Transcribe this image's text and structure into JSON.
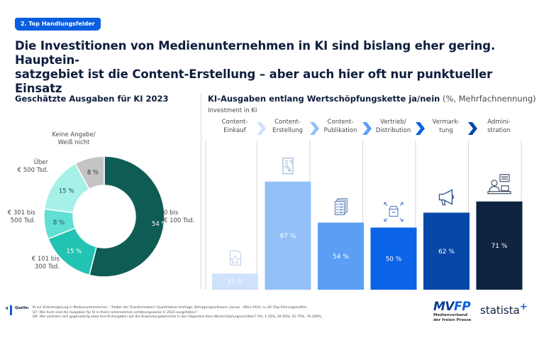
{
  "badge": "2. Top Handlungsfelder",
  "title_line1": "Die Investitionen von Medienunternehmen in KI sind bislang eher gering. Hauptein-",
  "title_line2": "satzgebiet ist die Content-Erstellung – aber auch hier oft nur punktueller Einsatz",
  "chart_data": [
    {
      "type": "pie",
      "variant": "donut",
      "title": "Geschätzte Ausgaben für KI 2023",
      "slices": [
        {
          "label": "0 bis € 100 Tsd.",
          "label_lines": [
            "0 bis",
            "€ 100 Tsd."
          ],
          "value": 54,
          "value_label": "54 %",
          "color": "#0f5c55",
          "text_color": "#ffffff"
        },
        {
          "label": "€ 101 bis 300 Tsd.",
          "label_lines": [
            "€ 101 bis",
            "300 Tsd."
          ],
          "value": 15,
          "value_label": "15 %",
          "color": "#22c3b3",
          "text_color": "#ffffff"
        },
        {
          "label": "€ 301 bis 500 Tsd.",
          "label_lines": [
            "€ 301 bis",
            "500 Tsd."
          ],
          "value": 8,
          "value_label": "8 %",
          "color": "#5fe0d2",
          "text_color": "#1e4a5a"
        },
        {
          "label": "Über € 500 Tsd.",
          "label_lines": [
            "Über",
            "€ 500 Tsd."
          ],
          "value": 15,
          "value_label": "15 %",
          "color": "#a6f0e8",
          "text_color": "#1e4a5a"
        },
        {
          "label": "Keine Angabe/ Weiß nicht",
          "label_lines": [
            "Keine Angabe/",
            "Weiß nicht"
          ],
          "value": 8,
          "value_label": "8 %",
          "color": "#c4c4c4",
          "text_color": "#3a3a3a"
        }
      ]
    },
    {
      "type": "bar",
      "title": "KI-Ausgaben entlang Wertschöpfungskette ja/nein",
      "title_suffix": "(%, Mehrfachnennung)",
      "subtitle": "Investment in KI",
      "categories": [
        "Content-Einkauf",
        "Content-Erstellung",
        "Content-Publikation",
        "Vertrieb/Distribution",
        "Vermarktung",
        "Administration"
      ],
      "category_lines": [
        [
          "Content-",
          "Einkauf"
        ],
        [
          "Content-",
          "Erstellung"
        ],
        [
          "Content-",
          "Publikation"
        ],
        [
          "Vertrieb/",
          "Distribution"
        ],
        [
          "Vermark-",
          "tung"
        ],
        [
          "Admini-",
          "stration"
        ]
      ],
      "values": [
        13,
        87,
        54,
        50,
        62,
        71
      ],
      "value_labels": [
        "13 %",
        "87 %",
        "54 %",
        "50 %",
        "62 %",
        "71 %"
      ],
      "colors": [
        "#cfe2fc",
        "#94c0f8",
        "#5b9ef5",
        "#0b63e6",
        "#0647a8",
        "#0f2440"
      ],
      "chevron_colors": [
        "#cfe2fc",
        "#94c0f8",
        "#5b9ef5",
        "#0b63e6",
        "#0647a8"
      ],
      "icons": [
        "document-star-icon",
        "content-creation-icon",
        "documents-list-icon",
        "distribution-box-icon",
        "megaphone-icon",
        "ai-assistant-icon"
      ],
      "ylim": [
        0,
        100
      ]
    }
  ],
  "footer": {
    "page_number": "9",
    "source_label": "Quelle:",
    "lines": [
      "KI zur Erlössteigerung in Medienunternehmen – Treiber der Transformation? Quantitative Umfrage; Befragungszeitraum: Januar - März 2024; n=26 (Top-Führungskräfte)",
      "Q7: Wie hoch sind die Ausgaben für KI in Ihrem Unternehmen schätzungsweise in 2023 ausgefallen?",
      "Q9: Wie verteilen sich gegenwärtig etwa Ihre KI-Ausgaben auf die Anwendungsbereiche in den folgenden Kern-Wertschöpfungsschritten? 0%, 1-25%, 26-50%, 51-75%, 76-100%."
    ]
  },
  "logos": {
    "mvfp_a": "MV",
    "mvfp_b": "FP",
    "mvfp_sub1": "Medienverband",
    "mvfp_sub2": "der freien Presse",
    "statista": "statista",
    "statista_plus": "+"
  }
}
